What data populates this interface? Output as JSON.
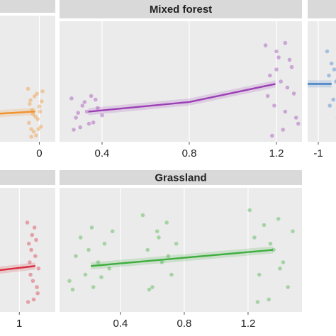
{
  "chart_data": [
    {
      "type": "scatter",
      "color": "#f0922e",
      "xlim": [
        -0.58,
        0.2
      ],
      "ylim": [
        0,
        1
      ],
      "xticks": [
        0
      ],
      "grid": true,
      "x": [
        -0.14,
        -0.12,
        -0.1,
        -0.08,
        -0.06,
        -0.04,
        -0.02,
        0.0,
        0.02,
        0.04,
        -0.13,
        -0.11,
        -0.09,
        -0.07,
        -0.05,
        -0.03,
        -0.01,
        0.01,
        0.03,
        -0.1
      ],
      "values": [
        0.42,
        0.3,
        0.1,
        0.22,
        0.36,
        0.05,
        0.18,
        0.28,
        0.12,
        0.4,
        0.15,
        0.33,
        0.25,
        0.08,
        0.2,
        0.38,
        0.1,
        0.24,
        0.32,
        0.04
      ],
      "fit": {
        "x": [
          -0.58,
          -0.05
        ],
        "values": [
          0.22,
          0.24
        ]
      }
    },
    {
      "type": "scatter",
      "title": "Mixed forest",
      "color": "#9b3fb5",
      "xlim": [
        0.205,
        1.317
      ],
      "ylim": [
        0,
        1
      ],
      "xticks": [
        0.4,
        0.8,
        1.2
      ],
      "grid": true,
      "x": [
        0.26,
        0.28,
        0.3,
        0.31,
        0.33,
        0.35,
        0.36,
        0.38,
        0.4,
        0.27,
        0.32,
        0.37,
        0.29,
        0.34,
        1.15,
        1.17,
        1.19,
        1.21,
        1.23,
        1.25,
        1.27,
        1.29,
        1.16,
        1.18,
        1.2,
        1.22,
        1.24,
        1.26,
        1.28,
        1.3,
        1.2,
        1.24
      ],
      "values": [
        0.36,
        0.2,
        0.12,
        0.3,
        0.25,
        0.38,
        0.16,
        0.28,
        0.22,
        0.1,
        0.33,
        0.35,
        0.24,
        0.15,
        0.8,
        0.55,
        0.3,
        0.7,
        0.1,
        0.45,
        0.62,
        0.2,
        0.38,
        0.05,
        0.75,
        0.5,
        0.25,
        0.68,
        0.4,
        0.15,
        0.6,
        0.82
      ],
      "fit": {
        "x": [
          0.337,
          0.8,
          1.195
        ],
        "values": [
          0.25,
          0.33,
          0.48
        ]
      }
    },
    {
      "type": "scatter",
      "color": "#3a7cc2",
      "xlim": [
        -1.12,
        -0.72
      ],
      "ylim": [
        0,
        1
      ],
      "xticks": [
        -1
      ],
      "grid": true,
      "x": [
        -0.9,
        -0.88,
        -0.85,
        -0.83,
        -0.8,
        -0.78,
        -0.87,
        -0.82
      ],
      "values": [
        0.75,
        0.55,
        0.65,
        0.35,
        0.5,
        0.2,
        0.3,
        0.6
      ],
      "fit": {
        "x": [
          -1.12,
          -0.85
        ],
        "values": [
          0.48,
          0.48
        ]
      }
    },
    {
      "type": "scatter",
      "color": "#d8303f",
      "xlim": [
        0.67,
        1.45
      ],
      "ylim": [
        0,
        1
      ],
      "xticks": [
        1
      ],
      "grid": true,
      "x": [
        1.1,
        1.12,
        1.14,
        1.16,
        1.18,
        1.2,
        1.22,
        1.24,
        1.11,
        1.15,
        1.19,
        1.23,
        1.13,
        1.17,
        1.21
      ],
      "values": [
        0.72,
        0.55,
        0.3,
        0.62,
        0.1,
        0.45,
        0.2,
        0.35,
        0.08,
        0.5,
        0.68,
        0.15,
        0.4,
        0.25,
        0.58
      ],
      "fit": {
        "x": [
          0.67,
          1.2
        ],
        "values": [
          0.33,
          0.37
        ]
      }
    },
    {
      "type": "scatter",
      "title": "Grassland",
      "color": "#3fae3f",
      "xlim": [
        0.018,
        1.538
      ],
      "ylim": [
        0,
        1
      ],
      "xticks": [
        0.4,
        0.8,
        1.2
      ],
      "grid": true,
      "x": [
        0.08,
        0.12,
        0.15,
        0.18,
        0.2,
        0.23,
        0.26,
        0.3,
        0.33,
        0.35,
        0.1,
        0.22,
        0.28,
        0.54,
        0.57,
        0.6,
        0.63,
        0.66,
        0.69,
        0.72,
        0.75,
        0.58,
        0.64,
        0.7,
        1.21,
        1.24,
        1.27,
        1.3,
        1.33,
        1.36,
        1.39,
        1.42,
        1.45,
        1.48,
        1.26,
        1.34,
        1.4
      ],
      "values": [
        0.25,
        0.45,
        0.6,
        0.3,
        0.5,
        0.2,
        0.4,
        0.55,
        0.35,
        0.65,
        0.18,
        0.68,
        0.28,
        0.78,
        0.5,
        0.2,
        0.65,
        0.4,
        0.72,
        0.3,
        0.55,
        0.18,
        0.6,
        0.45,
        0.82,
        0.6,
        0.3,
        0.7,
        0.1,
        0.5,
        0.75,
        0.4,
        0.2,
        0.65,
        0.08,
        0.55,
        0.35
      ],
      "fit": {
        "x": [
          0.215,
          1.356
        ],
        "values": [
          0.37,
          0.5
        ]
      }
    }
  ]
}
